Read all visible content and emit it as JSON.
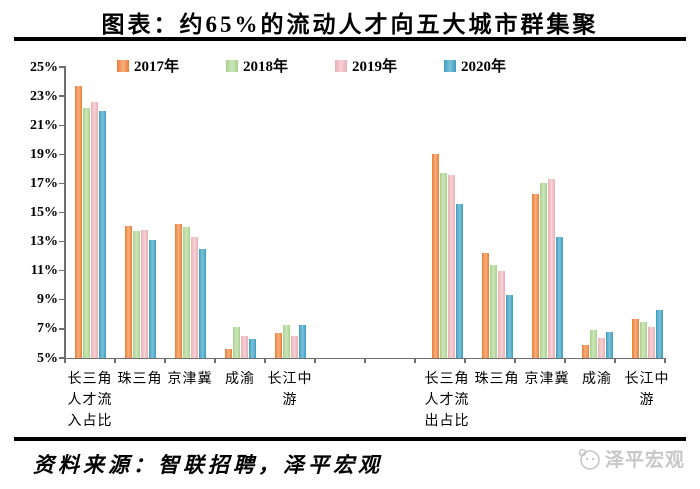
{
  "header": {
    "title": "图表：约65%的流动人才向五大城市群集聚"
  },
  "chart_data": {
    "type": "bar",
    "title": "图表：约65%的流动人才向五大城市群集聚",
    "ylabel": "",
    "xlabel": "",
    "ylim": [
      5,
      25
    ],
    "ytick_interval": 2,
    "ytick_suffix": "%",
    "yticks": [
      "25%",
      "23%",
      "21%",
      "19%",
      "17%",
      "15%",
      "13%",
      "11%",
      "9%",
      "7%",
      "5%"
    ],
    "grid": false,
    "legend_position": "top",
    "legend": [
      {
        "name": "2017年",
        "color": "#ED7D31",
        "light": "#F7B183"
      },
      {
        "name": "2018年",
        "color": "#A9D18E",
        "light": "#CDE6BA"
      },
      {
        "name": "2019年",
        "color": "#EAAEB6",
        "light": "#F6D2D6"
      },
      {
        "name": "2020年",
        "color": "#3E9DBD",
        "light": "#7CC3DB"
      }
    ],
    "groups": [
      {
        "id": "inflow",
        "name": "人才流入占比",
        "categories": [
          "长三角",
          "珠三角",
          "京津冀",
          "成渝",
          "长江中游"
        ],
        "axis_label_lines": [
          [
            "长三角",
            "人才流",
            "入占比"
          ],
          [
            "珠三角"
          ],
          [
            "京津冀"
          ],
          [
            "成渝"
          ],
          [
            "长江中",
            "游"
          ]
        ],
        "series": [
          {
            "name": "2017年",
            "values": [
              23.7,
              14.1,
              14.2,
              5.6,
              6.7
            ]
          },
          {
            "name": "2018年",
            "values": [
              22.2,
              13.7,
              14.0,
              7.1,
              7.3
            ]
          },
          {
            "name": "2019年",
            "values": [
              22.6,
              13.8,
              13.3,
              6.5,
              6.5
            ]
          },
          {
            "name": "2020年",
            "values": [
              22.0,
              13.1,
              12.5,
              6.3,
              7.3
            ]
          }
        ]
      },
      {
        "id": "outflow",
        "name": "人才流出占比",
        "categories": [
          "长三角",
          "珠三角",
          "京津冀",
          "成渝",
          "长江中游"
        ],
        "axis_label_lines": [
          [
            "长三角",
            "人才流",
            "出占比"
          ],
          [
            "珠三角"
          ],
          [
            "京津冀"
          ],
          [
            "成渝"
          ],
          [
            "长江中",
            "游"
          ]
        ],
        "series": [
          {
            "name": "2017年",
            "values": [
              19.0,
              12.2,
              16.3,
              5.9,
              7.7
            ]
          },
          {
            "name": "2018年",
            "values": [
              17.7,
              11.4,
              17.0,
              6.9,
              7.5
            ]
          },
          {
            "name": "2019年",
            "values": [
              17.6,
              11.0,
              17.3,
              6.4,
              7.1
            ]
          },
          {
            "name": "2020年",
            "values": [
              15.6,
              9.3,
              13.3,
              6.8,
              8.3
            ]
          }
        ]
      }
    ]
  },
  "footer": {
    "source": "资料来源：智联招聘，泽平宏观",
    "watermark": "泽平宏观"
  }
}
